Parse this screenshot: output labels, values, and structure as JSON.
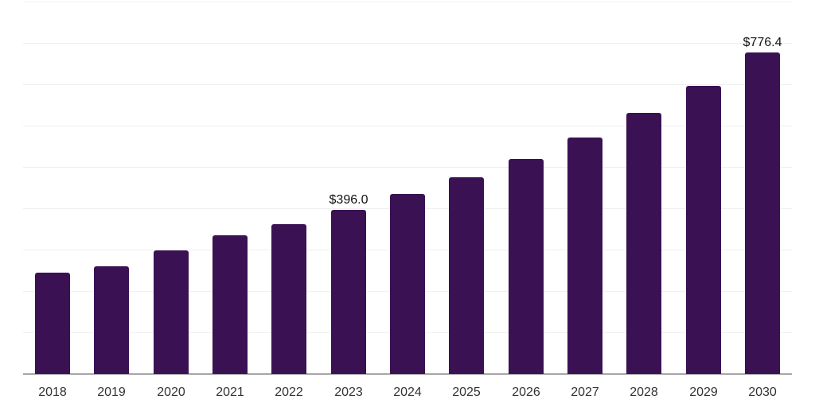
{
  "chart_data": {
    "type": "bar",
    "title": "",
    "xlabel": "",
    "ylabel": "",
    "categories": [
      "2018",
      "2019",
      "2020",
      "2021",
      "2022",
      "2023",
      "2024",
      "2025",
      "2026",
      "2027",
      "2028",
      "2029",
      "2030"
    ],
    "values": [
      244.0,
      260.0,
      298.5,
      334.0,
      362.0,
      396.0,
      434.5,
      474.5,
      520.0,
      571.0,
      630.0,
      697.0,
      776.4
    ],
    "annotations": [
      {
        "category": "2023",
        "index": 5,
        "text": "$396.0"
      },
      {
        "category": "2030",
        "index": 12,
        "text": "$776.4"
      }
    ],
    "ylim": [
      0,
      900
    ],
    "gridline_step": 100,
    "grid": "horizontal",
    "y_tick_labels_visible": false,
    "legend": "none",
    "colors": {
      "bar": "#3a1153",
      "axis": "#2f2e33",
      "gridline": "#f0f0f0",
      "tick_label": "#333333",
      "annotation": "#111111",
      "background": "#ffffff"
    }
  }
}
